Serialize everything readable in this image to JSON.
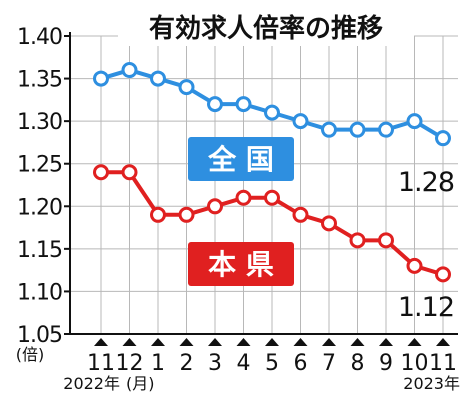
{
  "chart_data": {
    "type": "line",
    "title": "有効求人倍率の推移",
    "y_unit": "(倍)",
    "x_unit": "(月)",
    "ylim": [
      1.05,
      1.4
    ],
    "y_ticks": [
      "1.40",
      "1.35",
      "1.30",
      "1.25",
      "1.20",
      "1.15",
      "1.10",
      "1.05"
    ],
    "categories": [
      "11",
      "12",
      "1",
      "2",
      "3",
      "4",
      "5",
      "6",
      "7",
      "8",
      "9",
      "10",
      "11"
    ],
    "year_labels": {
      "start": "2022年",
      "end": "2023年"
    },
    "grid": true,
    "series": [
      {
        "name": "全 国",
        "color": "#2e8fe0",
        "values": [
          1.35,
          1.36,
          1.35,
          1.34,
          1.32,
          1.32,
          1.31,
          1.3,
          1.29,
          1.29,
          1.29,
          1.3,
          1.28
        ],
        "end_label": "1.28"
      },
      {
        "name": "本 県",
        "color": "#e02020",
        "values": [
          1.24,
          1.24,
          1.19,
          1.19,
          1.2,
          1.21,
          1.21,
          1.19,
          1.18,
          1.16,
          1.16,
          1.13,
          1.12
        ],
        "end_label": "1.12"
      }
    ]
  }
}
